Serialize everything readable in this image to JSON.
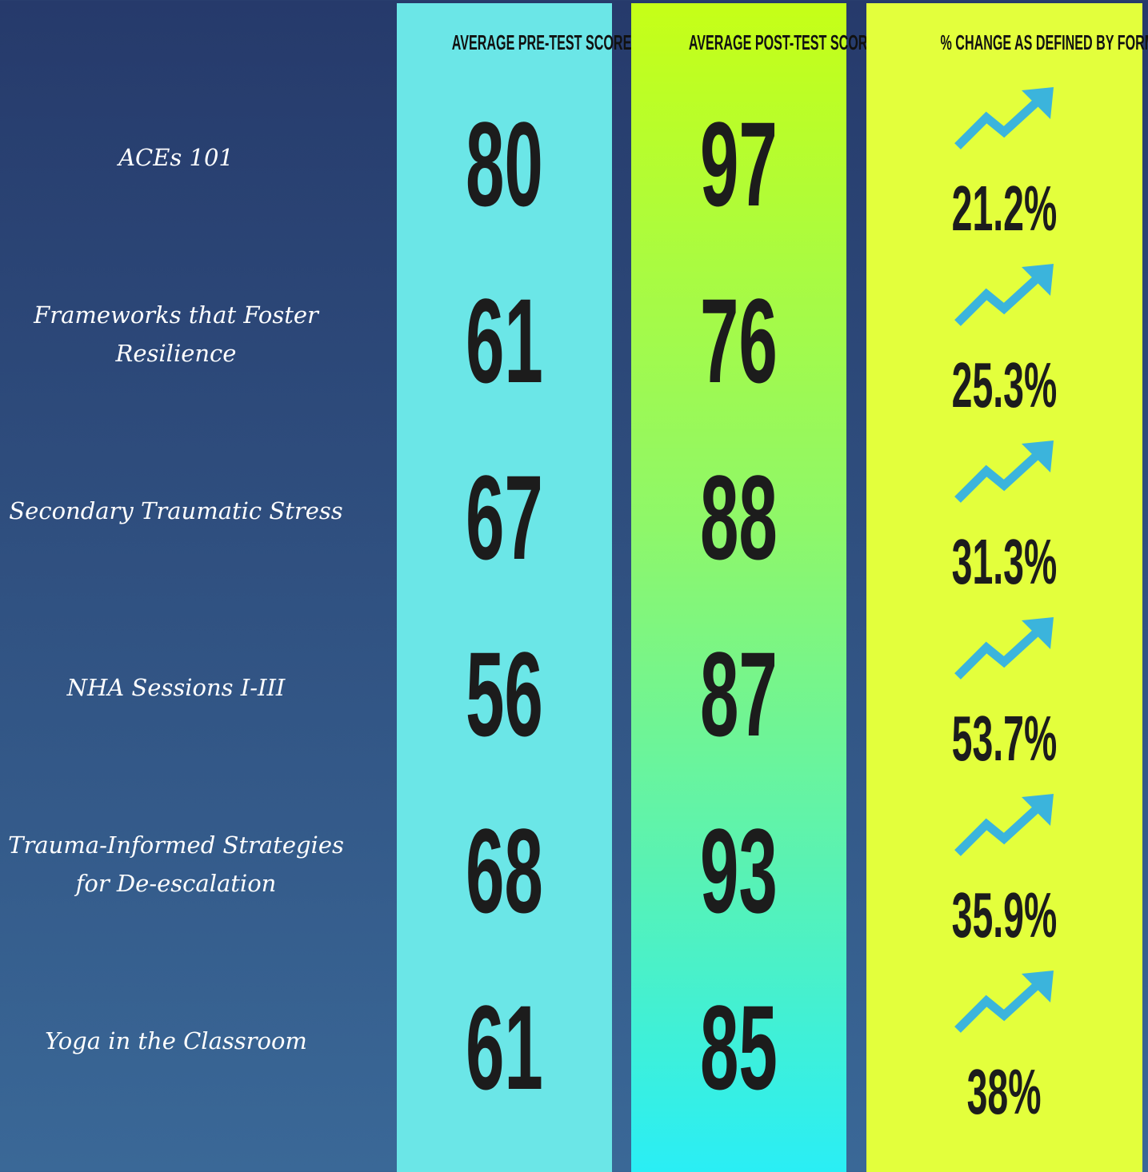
{
  "table": {
    "headers": [
      "AVERAGE PRE-TEST SCORE",
      "AVERAGE POST-TEST SCORE",
      "% CHANGE AS DEFINED BY FORMULA"
    ],
    "rows": [
      [
        "ACEs 101",
        "80",
        "97",
        "21.2%"
      ],
      [
        "Frameworks that Foster Resilience",
        "61",
        "76",
        "25.3%"
      ],
      [
        "Secondary Traumatic Stress",
        "67",
        "88",
        "31.3%"
      ],
      [
        "NHA Sessions I-III",
        "56",
        "87",
        "53.7%"
      ],
      [
        "Trauma-Informed Strategies for De-escalation",
        "68",
        "93",
        "35.9%"
      ],
      [
        "Yoga in the Classroom",
        "61",
        "85",
        "38%"
      ]
    ]
  }
}
